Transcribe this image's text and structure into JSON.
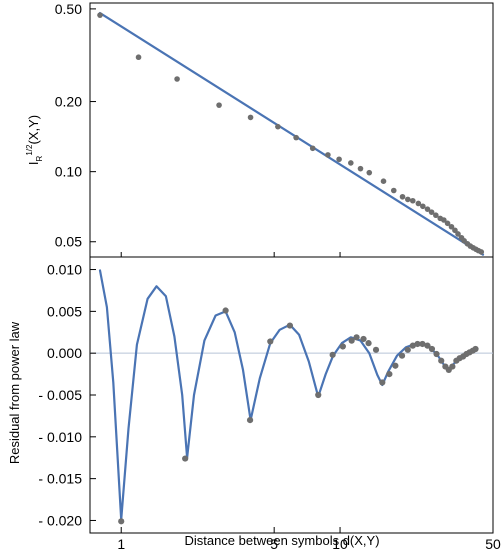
{
  "colors": {
    "line": "#4a74b4",
    "points": "#6e6e6e",
    "zero_line": "#b8c4d8"
  },
  "chart_data": [
    {
      "type": "scatter",
      "panel": "top",
      "ylabel_main": "I",
      "ylabel_sub": "R",
      "ylabel_sup": "1/2",
      "ylabel_rest": "(X,Y)",
      "x_scale": "log",
      "y_scale": "log",
      "xlim": [
        0.72,
        50
      ],
      "ylim": [
        0.043,
        0.53
      ],
      "yticks": [
        0.05,
        0.1,
        0.2,
        0.5
      ],
      "ytick_labels": [
        "0.05",
        "0.10",
        "0.20",
        "0.50"
      ],
      "grid": false,
      "fit_line": {
        "x_start": 0.8,
        "y_start": 0.48,
        "x_end": 45,
        "y_end": 0.044
      },
      "points": [
        [
          0.8,
          0.47
        ],
        [
          1.2,
          0.31
        ],
        [
          1.8,
          0.25
        ],
        [
          2.8,
          0.193
        ],
        [
          3.9,
          0.171
        ],
        [
          5.2,
          0.156
        ],
        [
          6.3,
          0.14
        ],
        [
          7.5,
          0.126
        ],
        [
          8.8,
          0.118
        ],
        [
          9.9,
          0.113
        ],
        [
          11.2,
          0.109
        ],
        [
          12.4,
          0.103
        ],
        [
          13.6,
          0.099
        ],
        [
          15.8,
          0.091
        ],
        [
          17.6,
          0.083
        ],
        [
          19.3,
          0.078
        ],
        [
          20.4,
          0.076
        ],
        [
          21.5,
          0.075
        ],
        [
          22.8,
          0.073
        ],
        [
          23.9,
          0.071
        ],
        [
          25.1,
          0.069
        ],
        [
          26.2,
          0.067
        ],
        [
          27.4,
          0.065
        ],
        [
          28.7,
          0.063
        ],
        [
          29.8,
          0.062
        ],
        [
          31.0,
          0.06
        ],
        [
          32.3,
          0.058
        ],
        [
          33.5,
          0.056
        ],
        [
          34.6,
          0.054
        ],
        [
          35.9,
          0.052
        ],
        [
          36.9,
          0.0505
        ],
        [
          38.2,
          0.049
        ],
        [
          39.4,
          0.0479
        ],
        [
          40.6,
          0.0471
        ],
        [
          41.8,
          0.0464
        ],
        [
          42.9,
          0.0458
        ],
        [
          44.2,
          0.0452
        ]
      ]
    },
    {
      "type": "scatter",
      "panel": "bottom",
      "xlabel": "Distance between symbols d(X,Y)",
      "ylabel": "Residual from power law",
      "x_scale": "log",
      "xlim": [
        0.72,
        50
      ],
      "ylim": [
        -0.0215,
        0.0115
      ],
      "xticks": [
        1,
        5,
        10,
        50
      ],
      "xtick_labels": [
        "1",
        "5",
        "10",
        "50"
      ],
      "yticks": [
        0.01,
        0.005,
        0.0,
        -0.005,
        -0.01,
        -0.015,
        -0.02
      ],
      "ytick_labels": [
        "0.010",
        "0.005",
        "0.000",
        "- 0.005",
        "- 0.010",
        "- 0.015",
        "- 0.020"
      ],
      "grid": false,
      "fit_curve": [
        [
          0.8,
          0.0099
        ],
        [
          0.86,
          0.0055
        ],
        [
          0.92,
          -0.0035
        ],
        [
          1.0,
          -0.0199
        ],
        [
          1.08,
          -0.009
        ],
        [
          1.18,
          0.001
        ],
        [
          1.32,
          0.0065
        ],
        [
          1.45,
          0.008
        ],
        [
          1.6,
          0.0068
        ],
        [
          1.75,
          0.002
        ],
        [
          1.9,
          -0.005
        ],
        [
          2.0,
          -0.0125
        ],
        [
          2.15,
          -0.005
        ],
        [
          2.4,
          0.0015
        ],
        [
          2.7,
          0.0045
        ],
        [
          3.0,
          0.005
        ],
        [
          3.3,
          0.0025
        ],
        [
          3.6,
          -0.002
        ],
        [
          3.9,
          -0.008
        ],
        [
          4.3,
          -0.003
        ],
        [
          4.8,
          0.0012
        ],
        [
          5.3,
          0.0028
        ],
        [
          5.9,
          0.0034
        ],
        [
          6.5,
          0.0022
        ],
        [
          7.2,
          -0.001
        ],
        [
          7.95,
          -0.0052
        ],
        [
          8.6,
          -0.0025
        ],
        [
          9.3,
          -0.0003
        ],
        [
          10.2,
          0.0012
        ],
        [
          11.2,
          0.0019
        ],
        [
          12.4,
          0.0015
        ],
        [
          13.6,
          0.0
        ],
        [
          14.8,
          -0.0026
        ],
        [
          15.6,
          -0.0038
        ],
        [
          16.6,
          -0.0022
        ],
        [
          18.2,
          -0.0003
        ],
        [
          20.0,
          0.0007
        ],
        [
          22.0,
          0.0011
        ],
        [
          24.0,
          0.0011
        ],
        [
          26.0,
          0.0006
        ],
        [
          28.0,
          -0.0003
        ],
        [
          30.0,
          -0.0015
        ],
        [
          31.5,
          -0.0022
        ],
        [
          33.0,
          -0.0013
        ],
        [
          35.5,
          -0.0005
        ],
        [
          38.0,
          0.0
        ],
        [
          40.0,
          0.0003
        ],
        [
          41.5,
          0.0005
        ]
      ],
      "points": [
        [
          1.0,
          -0.0201
        ],
        [
          1.96,
          -0.0126
        ],
        [
          3.0,
          0.0051
        ],
        [
          3.88,
          -0.008
        ],
        [
          4.8,
          0.0014
        ],
        [
          5.9,
          0.0033
        ],
        [
          7.95,
          -0.005
        ],
        [
          9.25,
          -0.0002
        ],
        [
          10.3,
          0.0008
        ],
        [
          11.3,
          0.0015
        ],
        [
          11.9,
          0.0019
        ],
        [
          12.8,
          0.0017
        ],
        [
          13.5,
          0.0012
        ],
        [
          14.6,
          0.0004
        ],
        [
          15.6,
          -0.0035
        ],
        [
          16.8,
          -0.0025
        ],
        [
          17.9,
          -0.0015
        ],
        [
          19.2,
          -0.0003
        ],
        [
          20.4,
          0.0004
        ],
        [
          21.5,
          0.0009
        ],
        [
          22.6,
          0.0011
        ],
        [
          23.8,
          0.0011
        ],
        [
          25.1,
          0.0009
        ],
        [
          26.3,
          0.0005
        ],
        [
          27.6,
          -0.0001
        ],
        [
          29.0,
          -0.0009
        ],
        [
          30.3,
          -0.0016
        ],
        [
          31.4,
          -0.002
        ],
        [
          32.6,
          -0.0016
        ],
        [
          34.0,
          -0.0009
        ],
        [
          35.2,
          -0.0006
        ],
        [
          36.5,
          -0.0004
        ],
        [
          37.8,
          -0.0001
        ],
        [
          39.1,
          0.0001
        ],
        [
          40.4,
          0.0003
        ],
        [
          41.6,
          0.0005
        ]
      ]
    }
  ]
}
